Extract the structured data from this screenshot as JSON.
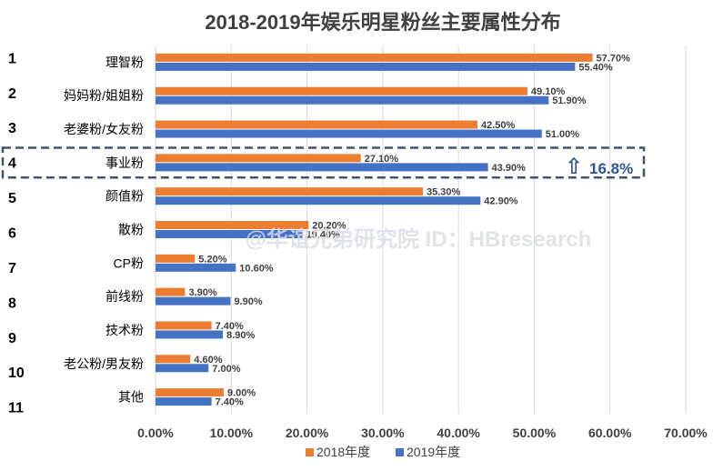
{
  "chart_data": {
    "type": "bar",
    "orientation": "horizontal",
    "title": "2018-2019年娱乐明星粉丝主要属性分布",
    "ranks": [
      "1",
      "2",
      "3",
      "4",
      "5",
      "6",
      "7",
      "8",
      "9",
      "10",
      "11"
    ],
    "categories": [
      "理智粉",
      "妈妈粉/姐姐粉",
      "老婆粉/女友粉",
      "事业粉",
      "颜值粉",
      "散粉",
      "CP粉",
      "前线粉",
      "技术粉",
      "老公粉/男友粉",
      "其他"
    ],
    "series": [
      {
        "name": "2018年度",
        "color": "#ED7D31",
        "values": [
          57.7,
          49.1,
          42.5,
          27.1,
          35.3,
          20.2,
          5.2,
          3.9,
          7.4,
          4.6,
          9.0
        ],
        "labels": [
          "57.70%",
          "49.10%",
          "42.50%",
          "27.10%",
          "35.30%",
          "20.20%",
          "5.20%",
          "3.90%",
          "7.40%",
          "4.60%",
          "9.00%"
        ]
      },
      {
        "name": "2019年度",
        "color": "#4472C4",
        "values": [
          55.4,
          51.9,
          51.0,
          43.9,
          42.9,
          19.4,
          10.6,
          9.9,
          8.9,
          7.0,
          7.4
        ],
        "labels": [
          "55.40%",
          "51.90%",
          "51.00%",
          "43.90%",
          "42.90%",
          "19.40%",
          "10.60%",
          "9.90%",
          "8.90%",
          "7.00%",
          "7.40%"
        ]
      }
    ],
    "xlim": [
      0,
      70
    ],
    "xticks": [
      "0.00%",
      "10.00%",
      "20.00%",
      "30.00%",
      "40.00%",
      "50.00%",
      "60.00%",
      "70.00%"
    ],
    "gridlines": true,
    "legend_position": "bottom",
    "annotation": {
      "category": "事业粉",
      "arrow": "⇧",
      "text": "16.8%",
      "color": "#2F5597"
    },
    "watermark": "@华谊兄弟研究院 ID：HBresearch"
  }
}
